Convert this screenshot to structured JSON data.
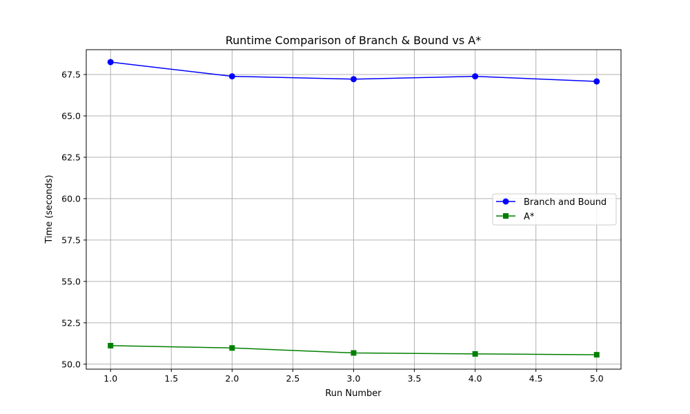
{
  "chart_data": {
    "type": "line",
    "title": "Runtime Comparison of Branch & Bound vs A*",
    "xlabel": "Run Number",
    "ylabel": "Time (seconds)",
    "x": [
      1,
      2,
      3,
      4,
      5
    ],
    "xlim": [
      0.8,
      5.2
    ],
    "ylim": [
      49.7,
      69.0
    ],
    "xticks": [
      1.0,
      1.5,
      2.0,
      2.5,
      3.0,
      3.5,
      4.0,
      4.5,
      5.0
    ],
    "yticks": [
      50.0,
      52.5,
      55.0,
      57.5,
      60.0,
      62.5,
      65.0,
      67.5
    ],
    "grid": true,
    "legend_position": "center-right",
    "series": [
      {
        "name": "Branch and Bound",
        "color": "#0000ff",
        "marker": "circle",
        "values": [
          68.25,
          67.39,
          67.22,
          67.39,
          67.08
        ]
      },
      {
        "name": "A*",
        "color": "#008000",
        "marker": "square",
        "values": [
          51.12,
          50.98,
          50.68,
          50.62,
          50.57
        ]
      }
    ]
  }
}
